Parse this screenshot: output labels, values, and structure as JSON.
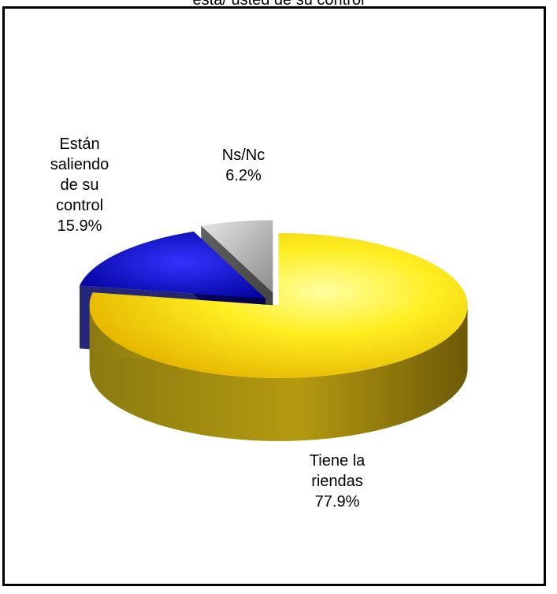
{
  "title": "está/ usted de su control",
  "chart_data": {
    "type": "pie",
    "style": "3d-exploded",
    "slices": [
      {
        "label_lines": [
          "Tiene la",
          "riendas"
        ],
        "value": 77.9,
        "value_text": "77.9%",
        "color": "#ffd400"
      },
      {
        "label_lines": [
          "Están",
          "saliendo",
          "de su",
          "control"
        ],
        "value": 15.9,
        "value_text": "15.9%",
        "color": "#0000cc"
      },
      {
        "label_lines": [
          "Ns/Nc"
        ],
        "value": 6.2,
        "value_text": "6.2%",
        "color": "#a6a6a6"
      }
    ],
    "legend": "none"
  }
}
